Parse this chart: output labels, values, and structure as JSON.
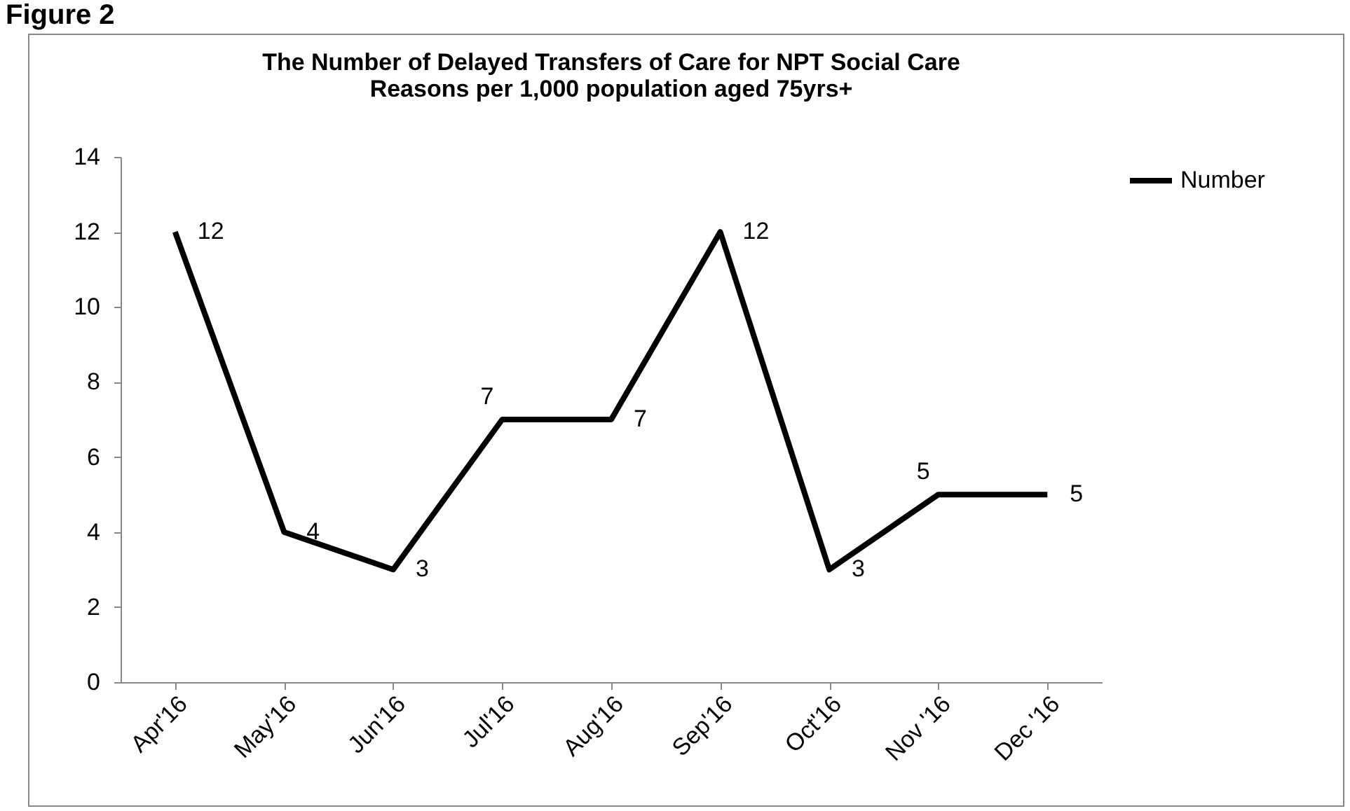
{
  "chart_data": {
    "type": "line",
    "title": [
      "The Number of Delayed Transfers of Care for NPT Social Care",
      "Reasons per 1,000 population aged 75yrs+"
    ],
    "annotations": [
      "Figure 2"
    ],
    "categories": [
      "Apr'16",
      "May'16",
      "Jun'16",
      "Jul'16",
      "Aug'16",
      "Sep'16",
      "Oct'16",
      "Nov '16",
      "Dec '16"
    ],
    "series": [
      {
        "name": "Number",
        "color": "#000000",
        "values": [
          12,
          4,
          3,
          7,
          7,
          12,
          3,
          5,
          5
        ]
      }
    ],
    "ylim": [
      0,
      14
    ],
    "yticks": [
      0,
      2,
      4,
      6,
      8,
      10,
      12,
      14
    ],
    "grid": false,
    "legend": "right",
    "data_labels": true,
    "marker": "none",
    "line_style": "solid"
  }
}
